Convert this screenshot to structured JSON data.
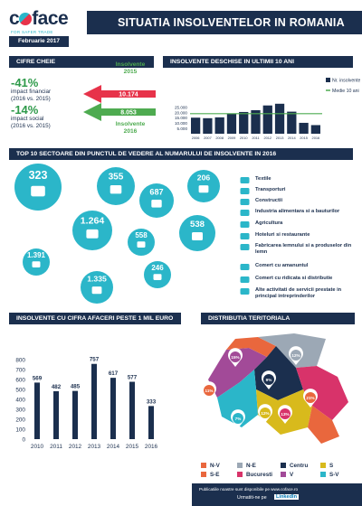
{
  "header": {
    "brand": "coface",
    "tagline": "FOR SAFER TRADE",
    "title": "SITUATIA INSOLVENTELOR IN ROMANIA",
    "date": "Februarie 2017"
  },
  "key_figures": {
    "title": "CIFRE CHEIE",
    "financial": {
      "value": "-41%",
      "label_line1": "impact financiar",
      "label_line2": "(2016 vs. 2015)"
    },
    "social": {
      "value": "-14%",
      "label_line1": "impact social",
      "label_line2": "(2016 vs. 2015)"
    },
    "insolv_2015_label": "Insolvente\n2015",
    "insolv_2015_value": "10.174",
    "insolv_2016_label": "Insolvente\n2016",
    "insolv_2016_value": "8.053"
  },
  "insolvency_chart": {
    "title": "INSOLVENTE DESCHISE IN ULTIMII 10 ANI",
    "legend_bars": "Nr. insolvente",
    "legend_line": "Medie 10 ani",
    "y_ticks": [
      "25.000",
      "20.000",
      "15.000",
      "10.000",
      "5.000"
    ]
  },
  "sectors": {
    "title": "TOP 10 SECTOARE DIN PUNCTUL DE VEDERE AL NUMARULUI DE INSOLVENTE IN 2016",
    "bubbles": [
      "323",
      "355",
      "687",
      "206",
      "1.264",
      "558",
      "538",
      "1.391",
      "1.335",
      "246"
    ],
    "items": [
      {
        "label": "Textile"
      },
      {
        "label": "Transporturi"
      },
      {
        "label": "Constructii"
      },
      {
        "label": "Industria alimentara si a bauturilor"
      },
      {
        "label": "Agricultura"
      },
      {
        "label": "Hoteluri si restaurante"
      },
      {
        "label": "Fabricarea lemnului si a produselor din lemn"
      },
      {
        "label": "Comert cu amanuntul"
      },
      {
        "label": "Comert cu ridicata si distributie"
      },
      {
        "label": "Alte activitati de servicii prestate in principal intreprinderilor"
      }
    ]
  },
  "big_turnover": {
    "title": "INSOLVENTE CU CIFRA AFACERI PESTE 1 MIL EURO"
  },
  "territorial": {
    "title": "DISTRIBUTIA TERITORIALA",
    "regions": [
      {
        "name": "N-V",
        "color": "#e9673d",
        "pct": "11%"
      },
      {
        "name": "N-E",
        "color": "#9ca8b5",
        "pct": "12%"
      },
      {
        "name": "Centru",
        "color": "#1b2f4e",
        "pct": "9%"
      },
      {
        "name": "S",
        "color": "#d8ba1c",
        "pct": "12%"
      },
      {
        "name": "S-E",
        "color": "#e9673d",
        "pct": "21%"
      },
      {
        "name": "Bucuresti",
        "color": "#d8336a",
        "pct": "13%"
      },
      {
        "name": "V",
        "color": "#a24a98",
        "pct": "15%"
      },
      {
        "name": "S-V",
        "color": "#2bb6c9",
        "pct": "7%"
      }
    ]
  },
  "footer": {
    "line1": "Publicatiile noastre sunt disponibile pe www.coface.ro",
    "line2": "Urmatiti-ne pe",
    "linkedin": "LinkedIn"
  },
  "chart_data": [
    {
      "type": "bar",
      "title": "INSOLVENTE DESCHISE IN ULTIMII 10 ANI",
      "categories": [
        "2006",
        "2007",
        "2008",
        "2009",
        "2010",
        "2011",
        "2012",
        "2013",
        "2014",
        "2015",
        "2016"
      ],
      "series": [
        {
          "name": "Nr. insolvente",
          "values": [
            15000,
            14500,
            15300,
            19000,
            20300,
            22000,
            26400,
            28000,
            20600,
            10174,
            8053
          ]
        },
        {
          "name": "Medie 10 ani",
          "type": "line",
          "values": [
            18700,
            18700,
            18700,
            18700,
            18700,
            18700,
            18700,
            18700,
            18700,
            18700,
            18700
          ]
        }
      ],
      "ylim": [
        0,
        27000
      ]
    },
    {
      "type": "bar",
      "title": "INSOLVENTE CU CIFRA AFACERI PESTE 1 MIL EURO",
      "categories": [
        "2010",
        "2011",
        "2012",
        "2013",
        "2014",
        "2015",
        "2016"
      ],
      "values": [
        569,
        482,
        485,
        757,
        617,
        577,
        333
      ],
      "y_ticks": [
        800,
        700,
        600,
        500,
        400,
        300,
        200,
        100,
        0
      ],
      "ylim": [
        0,
        800
      ]
    }
  ]
}
